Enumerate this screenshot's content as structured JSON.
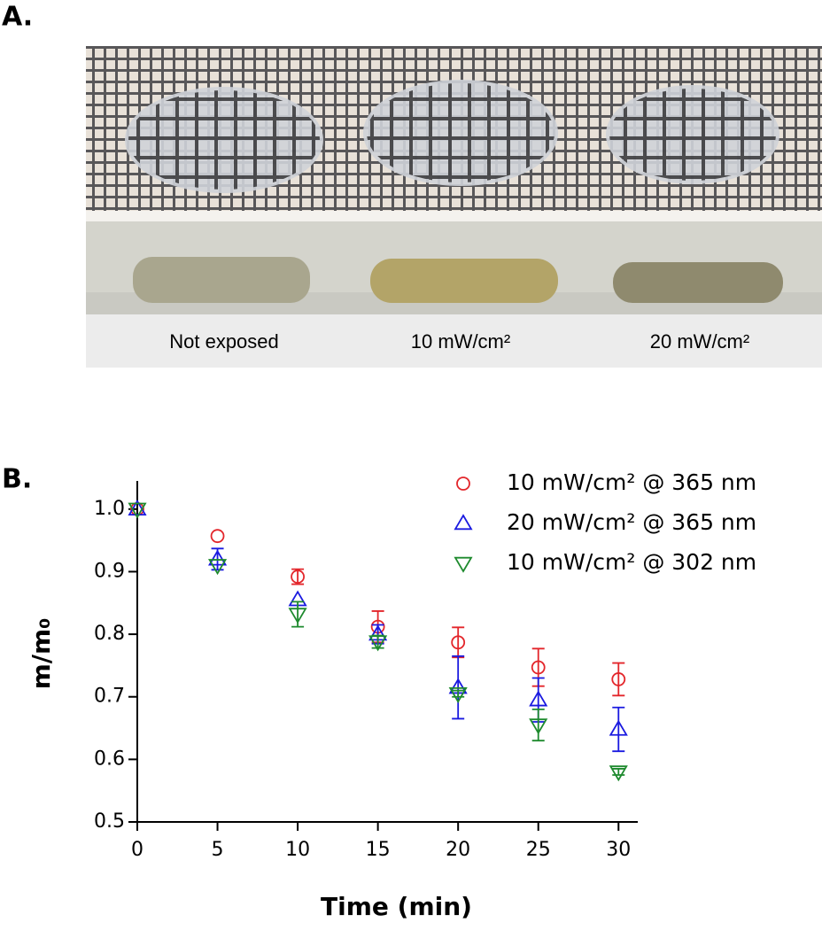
{
  "panel_a": {
    "label": "A.",
    "captions": [
      "Not exposed",
      "10 mW/cm²",
      "20 mW/cm²"
    ]
  },
  "chart_data": {
    "type": "scatter",
    "label": "B.",
    "xlabel": "Time (min)",
    "ylabel": "m/m₀",
    "x": [
      0,
      5,
      10,
      15,
      20,
      25,
      30
    ],
    "series": [
      {
        "name": "10 mW/cm² @ 365 nm",
        "color": "#e3262b",
        "marker": "circle",
        "values": [
          1.0,
          0.957,
          0.892,
          0.812,
          0.787,
          0.747,
          0.728
        ],
        "errors": [
          0,
          0,
          0.012,
          0.025,
          0.024,
          0.03,
          0.026
        ]
      },
      {
        "name": "20 mW/cm² @ 365 nm",
        "color": "#1a1ae0",
        "marker": "triangle-up",
        "values": [
          1.0,
          0.92,
          0.855,
          0.8,
          0.715,
          0.695,
          0.648
        ],
        "errors": [
          0,
          0.017,
          0,
          0.015,
          0.05,
          0.035,
          0.035
        ]
      },
      {
        "name": "10 mW/cm² @ 302 nm",
        "color": "#1e8a2e",
        "marker": "triangle-down",
        "values": [
          1.0,
          0.91,
          0.832,
          0.788,
          0.705,
          0.655,
          0.58
        ],
        "errors": [
          0,
          0,
          0.02,
          0.01,
          0.005,
          0.025,
          0.005
        ]
      }
    ],
    "xlim": [
      0,
      31.2
    ],
    "xticks": [
      0,
      5,
      10,
      15,
      20,
      25,
      30
    ],
    "ylim": [
      0.5,
      1.045
    ],
    "yticks": [
      0.5,
      0.6,
      0.7,
      0.8,
      0.9,
      {
        "value": 1,
        "label": "1.0"
      }
    ],
    "legend": "upper right"
  }
}
